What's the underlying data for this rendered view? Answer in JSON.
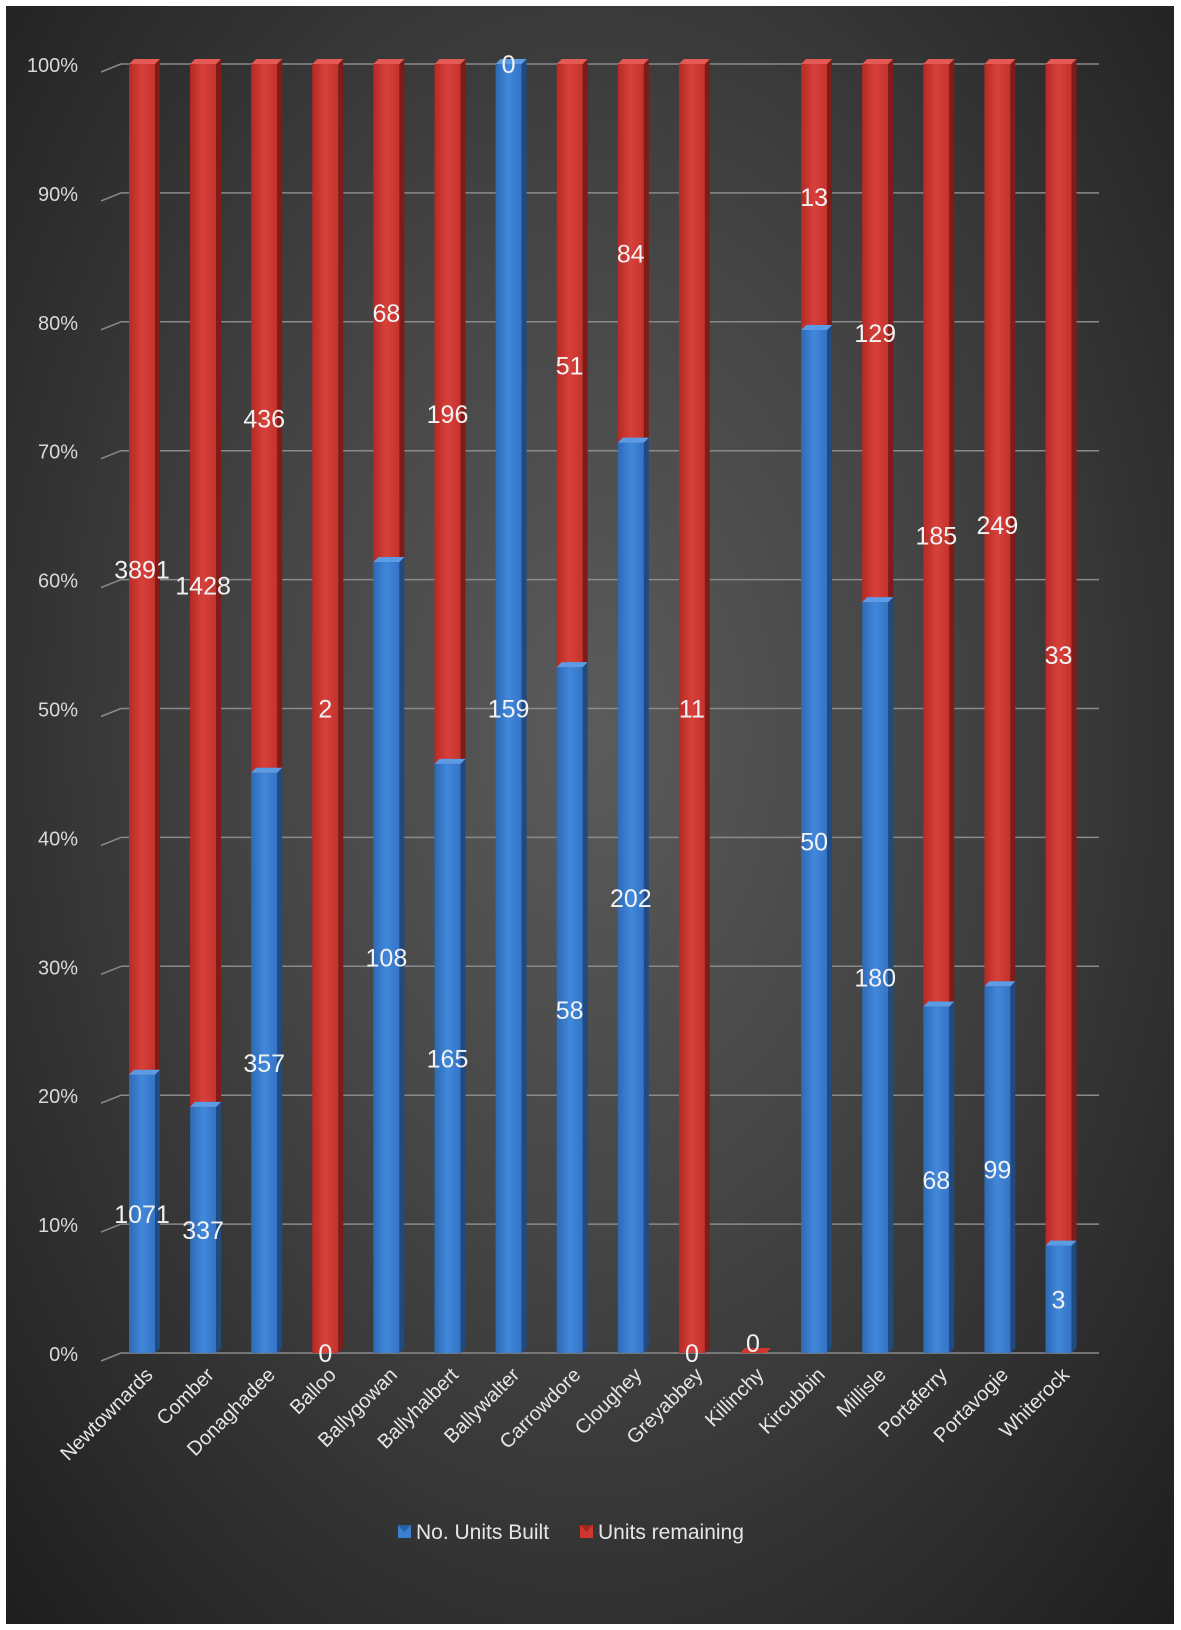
{
  "chart_data": {
    "type": "bar",
    "stacked": "percent",
    "categories": [
      "Newtownards",
      "Comber",
      "Donaghadee",
      "Balloo",
      "Ballygowan",
      "Ballyhalbert",
      "Ballywalter",
      "Carrowdore",
      "Cloughey",
      "Greyabbey",
      "Killinchy",
      "Kircubbin",
      "Millisle",
      "Portaferry",
      "Portavogie",
      "Whiterock"
    ],
    "series": [
      {
        "name": "No. Units Built",
        "color": "#3c7fd0",
        "values": [
          1071,
          337,
          357,
          0,
          108,
          165,
          159,
          58,
          202,
          0,
          0,
          50,
          180,
          68,
          99,
          3
        ]
      },
      {
        "name": "Units remaining",
        "color": "#d0362f",
        "values": [
          3891,
          1428,
          436,
          2,
          68,
          196,
          0,
          51,
          84,
          11,
          0,
          13,
          129,
          185,
          249,
          33
        ]
      }
    ],
    "yticks": [
      "0%",
      "10%",
      "20%",
      "30%",
      "40%",
      "50%",
      "60%",
      "70%",
      "80%",
      "90%",
      "100%"
    ],
    "ylim": [
      0,
      100
    ],
    "grid": true,
    "legend": "bottom"
  }
}
